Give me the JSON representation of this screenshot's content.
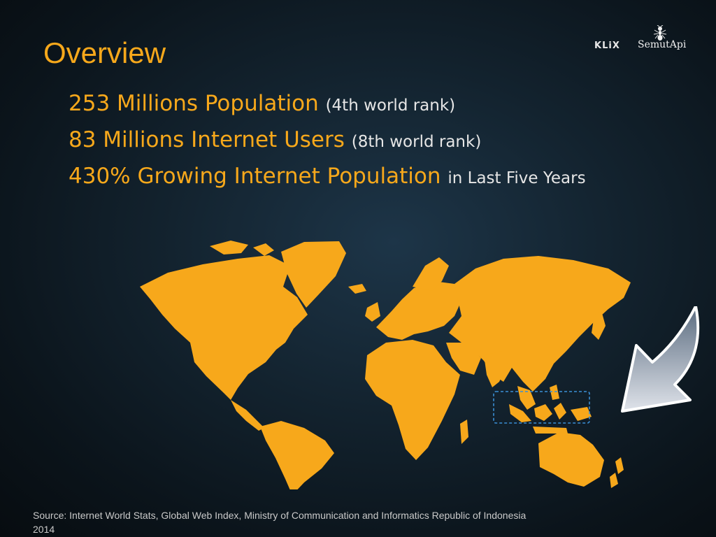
{
  "slide": {
    "title": "Overview",
    "bullets": [
      {
        "main": "253 Millions Population",
        "detail": "(4th world rank)"
      },
      {
        "main": "83 Millions Internet Users",
        "detail": "(8th world rank)"
      },
      {
        "main": "430% Growing Internet Population",
        "detail": "in Last Five Years"
      }
    ],
    "source": "Source: Internet World Stats, Global Web Index, Ministry of Communication and Informatics Republic of Indonesia 2014"
  },
  "logos": {
    "klix": "KLiX",
    "semutapi": "SemutApi"
  },
  "colors": {
    "accent": "#f7a81b",
    "background": "#0b141b",
    "text_secondary": "#e6e6e6",
    "highlight_box": "#3a8fd6"
  },
  "icons": {
    "map": "world-map-icon",
    "arrow": "pointer-arrow-icon",
    "logo_mark": "ant-icon"
  }
}
